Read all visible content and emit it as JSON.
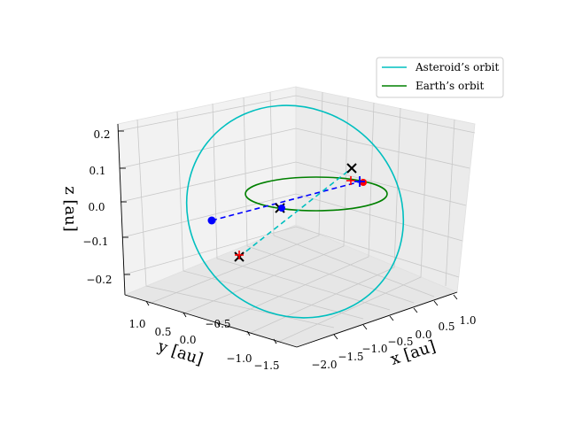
{
  "chart_data": {
    "type": "line",
    "projection": "3d",
    "xlabel": "x [au]",
    "ylabel": "y [au]",
    "zlabel": "z [au]",
    "x_ticks": [
      "−2.0",
      "−1.5",
      "−1.0",
      "−0.5",
      "0.0",
      "0.5",
      "1.0"
    ],
    "y_ticks": [
      "1.0",
      "0.5",
      "0.0",
      "−0.5",
      "−1.0",
      "−1.5"
    ],
    "z_ticks": [
      "0.2",
      "0.1",
      "0.0",
      "−0.1",
      "−0.2"
    ],
    "grid": true,
    "legend_position": "upper right",
    "series": [
      {
        "name": "Asteroid’s orbit",
        "color": "#00bfbf",
        "style": "solid"
      },
      {
        "name": "Earth’s orbit",
        "color": "#008000",
        "style": "solid"
      }
    ],
    "markers": [
      {
        "kind": "cross",
        "color": "#000000"
      },
      {
        "kind": "cross",
        "color": "#000000"
      },
      {
        "kind": "cross",
        "color": "#000000"
      },
      {
        "kind": "plus",
        "color": "#ff0000"
      },
      {
        "kind": "plus",
        "color": "#ff0000"
      },
      {
        "kind": "dot",
        "color": "#0000ff"
      },
      {
        "kind": "dot",
        "color": "#0000ff"
      },
      {
        "kind": "dot",
        "color": "#ff0000"
      },
      {
        "kind": "plus",
        "color": "#0000ff"
      }
    ],
    "connectors": [
      {
        "color": "#0000ff",
        "style": "dashed"
      },
      {
        "color": "#00bfbf",
        "style": "dashed"
      }
    ]
  }
}
